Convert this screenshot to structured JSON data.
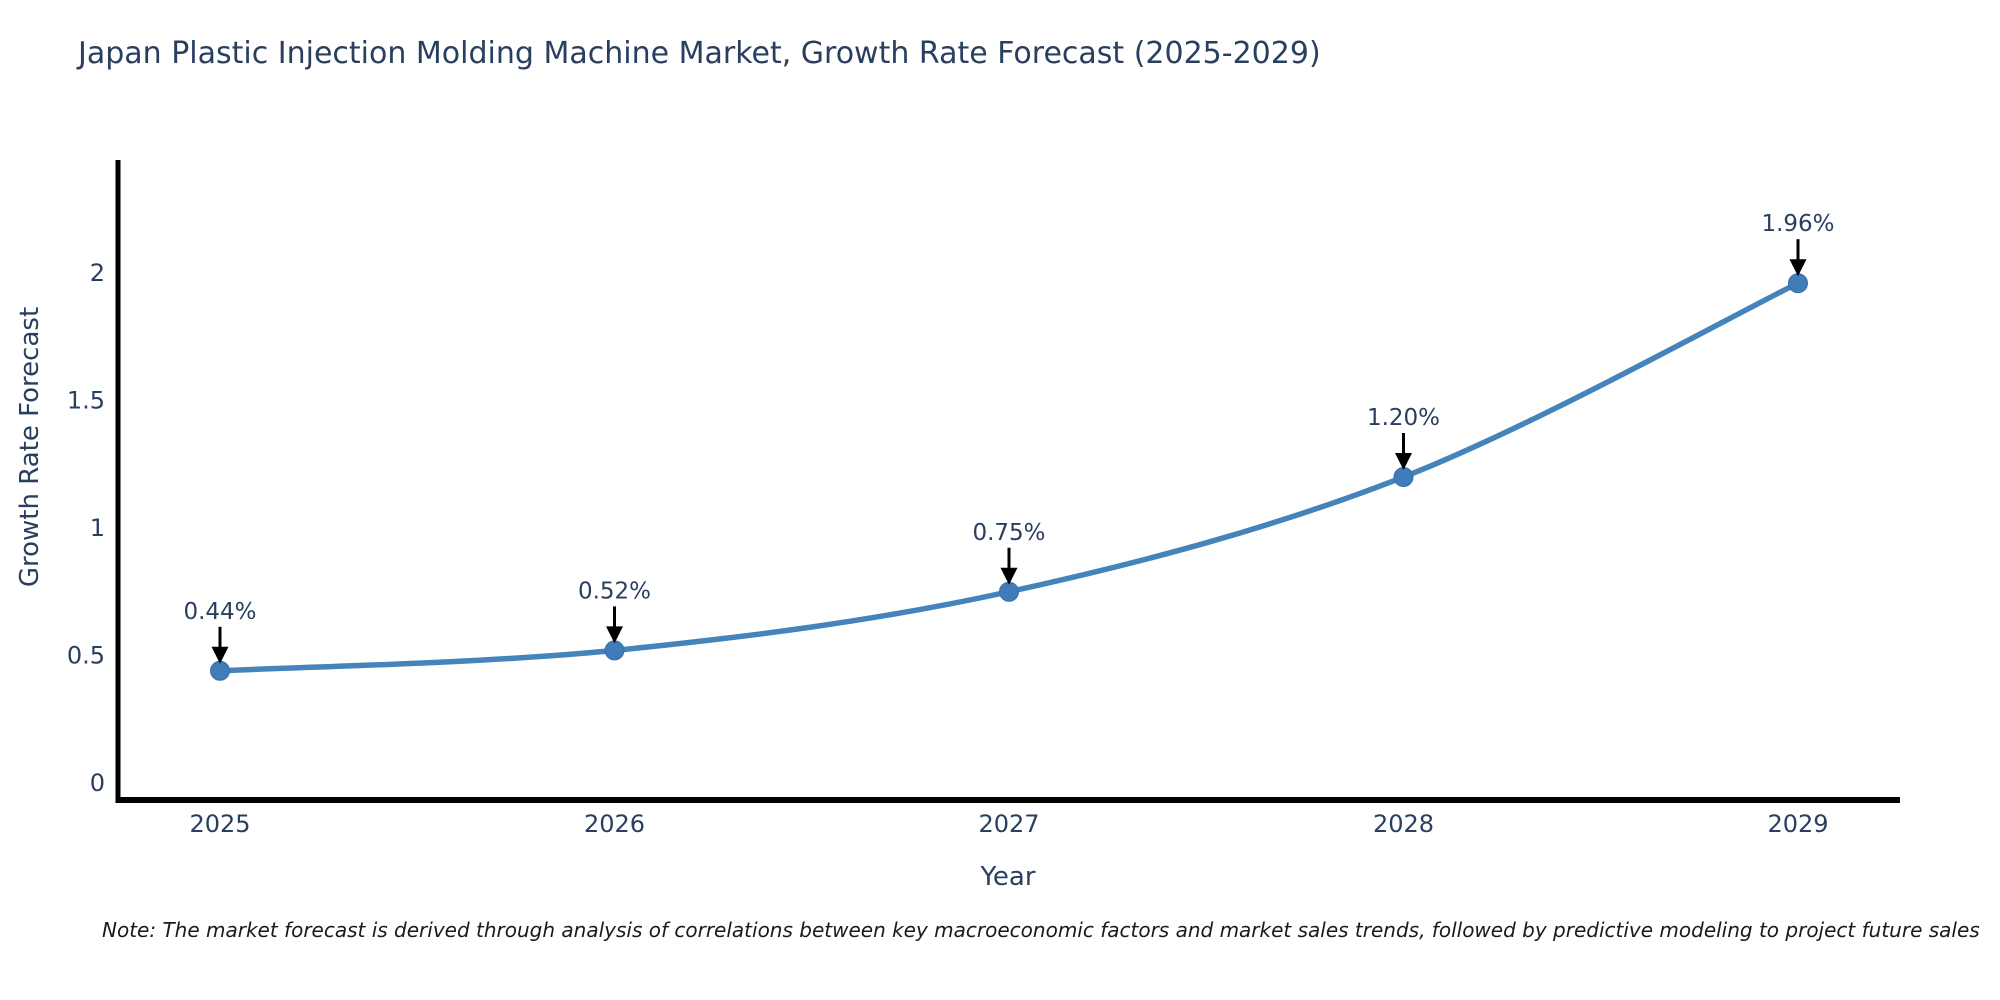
{
  "chart_data": {
    "type": "line",
    "title": "Japan Plastic Injection Molding Machine Market, Growth Rate Forecast (2025-2029)",
    "xlabel": "Year",
    "ylabel": "Growth Rate Forecast",
    "x": [
      2025,
      2026,
      2027,
      2028,
      2029
    ],
    "series": [
      {
        "name": "Growth Rate Forecast",
        "values": [
          0.44,
          0.52,
          0.75,
          1.2,
          1.96
        ],
        "point_labels": [
          "0.44%",
          "0.52%",
          "0.75%",
          "1.20%",
          "1.96%"
        ]
      }
    ],
    "xtick_labels": [
      "2025",
      "2026",
      "2027",
      "2028",
      "2029"
    ],
    "ytick_values": [
      0,
      0.5,
      1,
      1.5,
      2
    ],
    "ytick_labels": [
      "0",
      "0.5",
      "1",
      "1.5",
      "2"
    ],
    "ylim": [
      -0.07,
      2.45
    ],
    "grid": false,
    "legend_position": "none",
    "colors": {
      "line": "#4583bb",
      "marker": "#3f7cb8",
      "marker_edge": "#3a6ea8",
      "axis": "#000000",
      "annotation_arrow": "#000000",
      "annotation_text": "#2a3f5f",
      "tick_text": "#2a3f5f",
      "title_text": "#2a3f5f"
    }
  },
  "note": "Note: The market forecast is derived through analysis of correlations between key macroeconomic factors and market sales trends, followed by predictive modeling to project future sales"
}
